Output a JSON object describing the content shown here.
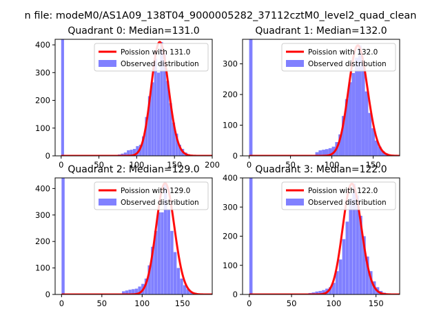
{
  "figure": {
    "suptitle": "n file: modeM0/AS1A09_138T04_9000005282_37112cztM0_level2_quad_clean"
  },
  "colors": {
    "fit_line": "#ff0000",
    "observed": "#8080ff",
    "axes": "#000000",
    "legend_border": "#cccccc"
  },
  "chart_data": [
    {
      "type": "bar",
      "title": "Quadrant 0: Median=131.0",
      "xlim": [
        -8,
        200
      ],
      "ylim": [
        0,
        420
      ],
      "xticks": [
        0,
        50,
        100,
        150,
        200
      ],
      "yticks": [
        0,
        100,
        200,
        300,
        400
      ],
      "legend_position": "top-right",
      "series": [
        {
          "name": "Poission with 131.0",
          "kind": "line",
          "median": 131
        },
        {
          "name": "Observed distribution",
          "kind": "hist",
          "bin_width": 3.8,
          "bins": [
            [
              0,
              420
            ],
            [
              75,
              5
            ],
            [
              79,
              8
            ],
            [
              83,
              12
            ],
            [
              87,
              20
            ],
            [
              91,
              22
            ],
            [
              95,
              25
            ],
            [
              99,
              35
            ],
            [
              103,
              40
            ],
            [
              107,
              70
            ],
            [
              111,
              140
            ],
            [
              115,
              215
            ],
            [
              119,
              265
            ],
            [
              123,
              350
            ],
            [
              127,
              300
            ],
            [
              131,
              410
            ],
            [
              135,
              370
            ],
            [
              139,
              270
            ],
            [
              143,
              190
            ],
            [
              147,
              120
            ],
            [
              151,
              80
            ],
            [
              155,
              40
            ],
            [
              159,
              25
            ],
            [
              163,
              12
            ],
            [
              167,
              6
            ]
          ]
        }
      ]
    },
    {
      "type": "bar",
      "title": "Quadrant 1: Median=132.0",
      "xlim": [
        -8,
        182
      ],
      "ylim": [
        0,
        380
      ],
      "xticks": [
        0,
        50,
        100,
        150
      ],
      "yticks": [
        0,
        100,
        200,
        300
      ],
      "legend_position": "top-right",
      "series": [
        {
          "name": "Poission with 132.0",
          "kind": "line",
          "median": 132
        },
        {
          "name": "Observed distribution",
          "kind": "hist",
          "bin_width": 4.0,
          "bins": [
            [
              0,
              380
            ],
            [
              80,
              12
            ],
            [
              84,
              18
            ],
            [
              88,
              20
            ],
            [
              92,
              22
            ],
            [
              96,
              25
            ],
            [
              100,
              30
            ],
            [
              104,
              45
            ],
            [
              108,
              70
            ],
            [
              112,
              130
            ],
            [
              116,
              185
            ],
            [
              120,
              240
            ],
            [
              124,
              270
            ],
            [
              128,
              320
            ],
            [
              132,
              360
            ],
            [
              136,
              305
            ],
            [
              140,
              210
            ],
            [
              144,
              140
            ],
            [
              148,
              90
            ],
            [
              152,
              50
            ],
            [
              156,
              30
            ],
            [
              160,
              15
            ],
            [
              164,
              8
            ]
          ]
        }
      ]
    },
    {
      "type": "bar",
      "title": "Quadrant 2: Median=129.0",
      "xlim": [
        -8,
        187
      ],
      "ylim": [
        0,
        440
      ],
      "xticks": [
        0,
        50,
        100,
        150
      ],
      "yticks": [
        0,
        100,
        200,
        300,
        400
      ],
      "legend_position": "top-right",
      "series": [
        {
          "name": "Poission with 129.0",
          "kind": "line",
          "median": 129
        },
        {
          "name": "Observed distribution",
          "kind": "hist",
          "bin_width": 3.8,
          "bins": [
            [
              0,
              440
            ],
            [
              75,
              12
            ],
            [
              79,
              15
            ],
            [
              83,
              18
            ],
            [
              87,
              20
            ],
            [
              91,
              22
            ],
            [
              95,
              30
            ],
            [
              99,
              40
            ],
            [
              103,
              60
            ],
            [
              107,
              110
            ],
            [
              111,
              180
            ],
            [
              115,
              240
            ],
            [
              119,
              310
            ],
            [
              123,
              310
            ],
            [
              127,
              420
            ],
            [
              131,
              320
            ],
            [
              135,
              240
            ],
            [
              139,
              160
            ],
            [
              143,
              100
            ],
            [
              147,
              60
            ],
            [
              151,
              35
            ],
            [
              155,
              20
            ],
            [
              159,
              10
            ],
            [
              163,
              5
            ]
          ]
        }
      ]
    },
    {
      "type": "bar",
      "title": "Quadrant 3: Median=122.0",
      "xlim": [
        -8,
        178
      ],
      "ylim": [
        0,
        400
      ],
      "xticks": [
        0,
        50,
        100,
        150
      ],
      "yticks": [
        0,
        100,
        200,
        300,
        400
      ],
      "legend_position": "top-right",
      "series": [
        {
          "name": "Poission with 122.0",
          "kind": "line",
          "median": 122
        },
        {
          "name": "Observed distribution",
          "kind": "hist",
          "bin_width": 3.8,
          "bins": [
            [
              0,
              400
            ],
            [
              70,
              5
            ],
            [
              74,
              7
            ],
            [
              78,
              10
            ],
            [
              82,
              12
            ],
            [
              86,
              15
            ],
            [
              90,
              20
            ],
            [
              94,
              25
            ],
            [
              98,
              40
            ],
            [
              102,
              80
            ],
            [
              106,
              120
            ],
            [
              110,
              190
            ],
            [
              114,
              250
            ],
            [
              118,
              330
            ],
            [
              122,
              380
            ],
            [
              126,
              340
            ],
            [
              130,
              270
            ],
            [
              134,
              200
            ],
            [
              138,
              130
            ],
            [
              142,
              80
            ],
            [
              146,
              45
            ],
            [
              150,
              25
            ],
            [
              154,
              12
            ],
            [
              158,
              6
            ]
          ]
        }
      ]
    }
  ]
}
